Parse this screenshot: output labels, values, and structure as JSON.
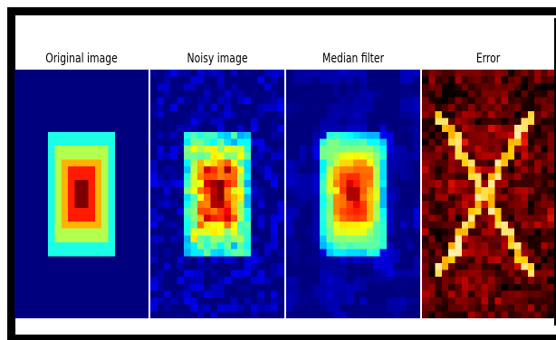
{
  "figure": {
    "panels": [
      {
        "id": "original",
        "title": "Original image"
      },
      {
        "id": "noisy",
        "title": "Noisy image"
      },
      {
        "id": "median",
        "title": "Median filter"
      },
      {
        "id": "error",
        "title": "Error"
      }
    ],
    "colormaps": {
      "jet": [
        "#00007f",
        "#0000ff",
        "#0080ff",
        "#00ffff",
        "#80ff80",
        "#ffff00",
        "#ff8000",
        "#ff0000",
        "#7f0000"
      ],
      "hot": [
        "#000000",
        "#5a0000",
        "#b40000",
        "#ff2000",
        "#ff8000",
        "#ffd000",
        "#ffffff"
      ]
    }
  }
}
